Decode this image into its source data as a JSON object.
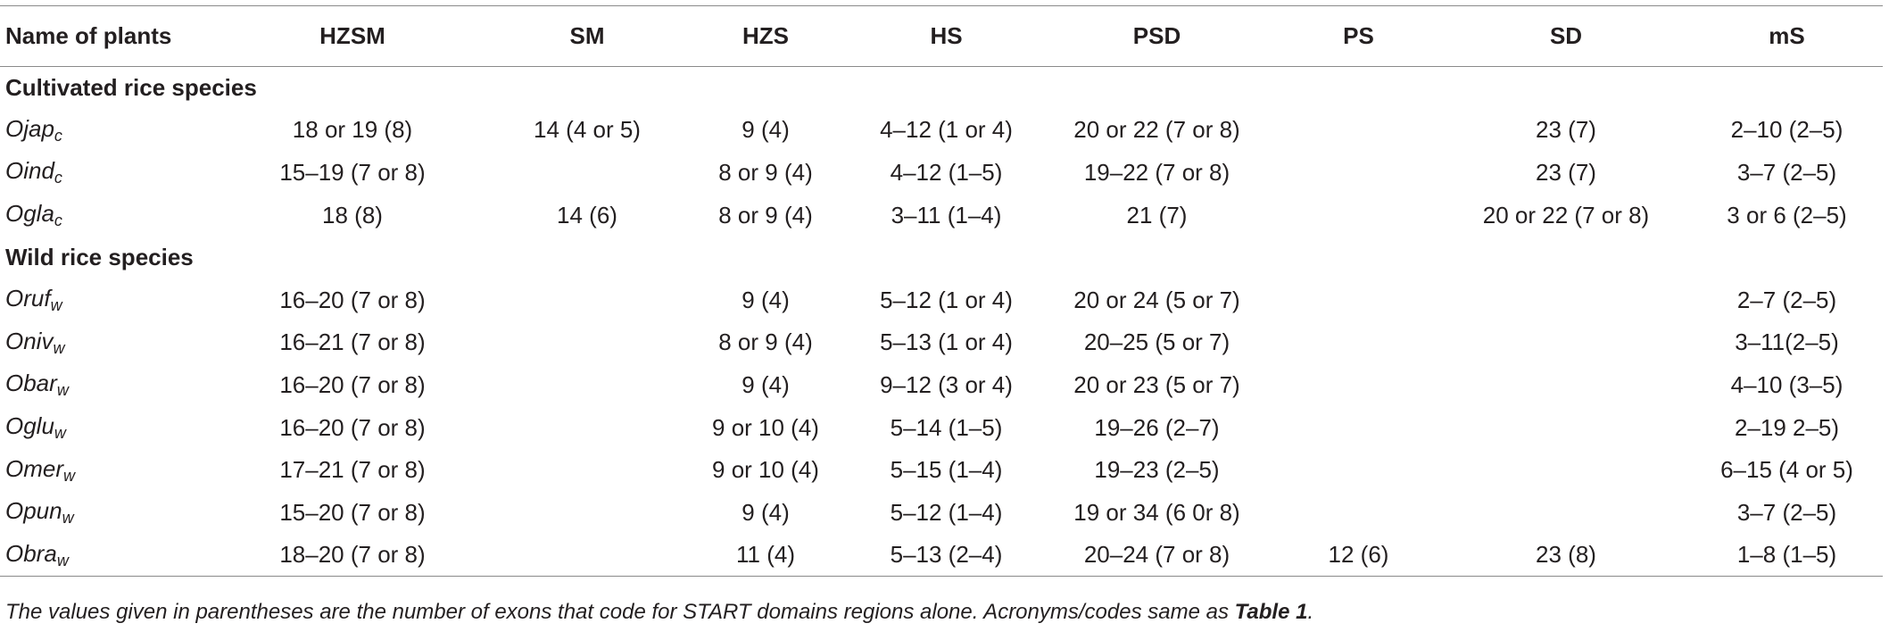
{
  "headers": [
    "Name of plants",
    "HZSM",
    "SM",
    "HZS",
    "HS",
    "PSD",
    "PS",
    "SD",
    "mS"
  ],
  "sections": [
    {
      "title": "Cultivated rice species",
      "rows": [
        {
          "name": "Ojap",
          "sub": "c",
          "cells": [
            "18 or 19 (8)",
            "14 (4 or 5)",
            "9 (4)",
            "4–12 (1 or 4)",
            "20 or 22 (7 or 8)",
            "",
            "23 (7)",
            "2–10 (2–5)"
          ]
        },
        {
          "name": "Oind",
          "sub": "c",
          "cells": [
            "15–19 (7 or 8)",
            "",
            "8 or 9 (4)",
            "4–12 (1–5)",
            "19–22 (7 or 8)",
            "",
            "23 (7)",
            "3–7 (2–5)"
          ]
        },
        {
          "name": "Ogla",
          "sub": "c",
          "cells": [
            "18 (8)",
            "14 (6)",
            "8 or 9 (4)",
            "3–11 (1–4)",
            "21 (7)",
            "",
            "20 or 22 (7 or 8)",
            "3 or 6 (2–5)"
          ]
        }
      ]
    },
    {
      "title": "Wild rice species",
      "rows": [
        {
          "name": "Oruf",
          "sub": "w",
          "cells": [
            "16–20 (7 or 8)",
            "",
            "9 (4)",
            "5–12 (1 or 4)",
            "20 or 24 (5 or 7)",
            "",
            "",
            "2–7 (2–5)"
          ]
        },
        {
          "name": "Oniv",
          "sub": "w",
          "cells": [
            "16–21 (7 or 8)",
            "",
            "8 or 9 (4)",
            "5–13 (1 or 4)",
            "20–25 (5 or 7)",
            "",
            "",
            "3–11(2–5)"
          ]
        },
        {
          "name": "Obar",
          "sub": "w",
          "cells": [
            "16–20 (7 or 8)",
            "",
            "9 (4)",
            "9–12 (3 or 4)",
            "20 or 23 (5 or 7)",
            "",
            "",
            "4–10 (3–5)"
          ]
        },
        {
          "name": "Oglu",
          "sub": "w",
          "cells": [
            "16–20 (7 or 8)",
            "",
            "9 or 10 (4)",
            "5–14 (1–5)",
            "19–26 (2–7)",
            "",
            "",
            "2–19 2–5)"
          ]
        },
        {
          "name": "Omer",
          "sub": "w",
          "cells": [
            "17–21 (7 or 8)",
            "",
            "9 or 10 (4)",
            "5–15 (1–4)",
            "19–23 (2–5)",
            "",
            "",
            "6–15 (4 or 5)"
          ]
        },
        {
          "name": "Opun",
          "sub": "w",
          "cells": [
            "15–20 (7 or 8)",
            "",
            "9 (4)",
            "5–12 (1–4)",
            "19 or 34 (6 0r 8)",
            "",
            "",
            "3–7 (2–5)"
          ]
        },
        {
          "name": "Obra",
          "sub": "w",
          "cells": [
            "18–20 (7 or 8)",
            "",
            "11 (4)",
            "5–13 (2–4)",
            "20–24 (7 or 8)",
            "12 (6)",
            "23 (8)",
            "1–8 (1–5)"
          ]
        }
      ]
    }
  ],
  "footnote": {
    "text": "The values given in parentheses are the number of exons that code for START domains regions alone. Acronyms/codes same as ",
    "ref": "Table 1",
    "end": "."
  }
}
